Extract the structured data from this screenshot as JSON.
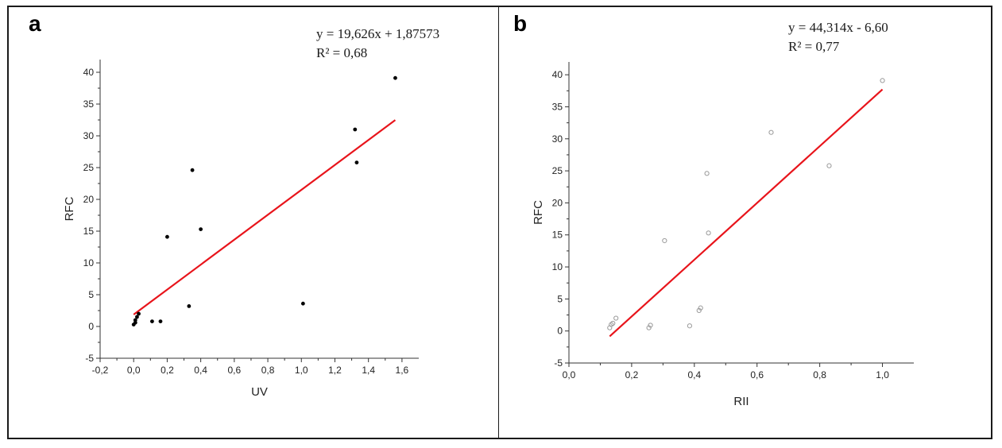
{
  "panels": {
    "a": {
      "letter": "a",
      "equation": "y = 19,626x + 1,87573",
      "r2": "R² = 0,68"
    },
    "b": {
      "letter": "b",
      "equation": "y = 44,314x - 6,60",
      "r2": "R² = 0,77"
    }
  },
  "colors": {
    "fit_line": "#e8141b",
    "points_a": "#000000",
    "points_b": "#9a9a9a"
  },
  "chart_data": [
    {
      "type": "scatter",
      "title": "",
      "xlabel": "UV",
      "ylabel": "RFC",
      "xlim": [
        -0.2,
        1.7
      ],
      "ylim": [
        -5,
        42
      ],
      "xticks": [
        "-0,2",
        "0,0",
        "0,2",
        "0,4",
        "0,6",
        "0,8",
        "1,0",
        "1,2",
        "1,4",
        "1,6"
      ],
      "xtick_values": [
        -0.2,
        0.0,
        0.2,
        0.4,
        0.6,
        0.8,
        1.0,
        1.2,
        1.4,
        1.6
      ],
      "yticks": [
        "-5",
        "0",
        "5",
        "10",
        "15",
        "20",
        "25",
        "30",
        "35",
        "40"
      ],
      "ytick_values": [
        -5,
        0,
        5,
        10,
        15,
        20,
        25,
        30,
        35,
        40
      ],
      "series": [
        {
          "marker": "filled-dot",
          "points": [
            [
              0.0,
              0.3
            ],
            [
              0.01,
              0.6
            ],
            [
              0.01,
              1.0
            ],
            [
              0.02,
              1.5
            ],
            [
              0.03,
              2.0
            ],
            [
              0.11,
              0.8
            ],
            [
              0.16,
              0.8
            ],
            [
              0.2,
              14.1
            ],
            [
              0.33,
              3.2
            ],
            [
              0.35,
              24.6
            ],
            [
              0.4,
              15.3
            ],
            [
              1.01,
              3.6
            ],
            [
              1.32,
              31.0
            ],
            [
              1.33,
              25.8
            ],
            [
              1.56,
              39.1
            ]
          ]
        }
      ],
      "fit_line": {
        "x": [
          0.0,
          1.56
        ],
        "y": [
          1.87573,
          32.49
        ]
      }
    },
    {
      "type": "scatter",
      "title": "",
      "xlabel": "RII",
      "ylabel": "RFC",
      "xlim": [
        0.0,
        1.1
      ],
      "ylim": [
        -5,
        42
      ],
      "xticks": [
        "0,0",
        "0,2",
        "0,4",
        "0,6",
        "0,8",
        "1,0"
      ],
      "xtick_values": [
        0.0,
        0.2,
        0.4,
        0.6,
        0.8,
        1.0
      ],
      "yticks": [
        "-5",
        "0",
        "5",
        "10",
        "15",
        "20",
        "25",
        "30",
        "35",
        "40"
      ],
      "ytick_values": [
        -5,
        0,
        5,
        10,
        15,
        20,
        25,
        30,
        35,
        40
      ],
      "series": [
        {
          "marker": "open-circle",
          "points": [
            [
              0.13,
              0.5
            ],
            [
              0.135,
              1.0
            ],
            [
              0.14,
              1.2
            ],
            [
              0.15,
              2.0
            ],
            [
              0.255,
              0.5
            ],
            [
              0.26,
              0.9
            ],
            [
              0.305,
              14.1
            ],
            [
              0.385,
              0.8
            ],
            [
              0.415,
              3.2
            ],
            [
              0.42,
              3.6
            ],
            [
              0.44,
              24.6
            ],
            [
              0.445,
              15.3
            ],
            [
              0.645,
              31.0
            ],
            [
              0.83,
              25.8
            ],
            [
              1.0,
              39.1
            ]
          ]
        }
      ],
      "fit_line": {
        "x": [
          0.13,
          1.0
        ],
        "y": [
          -0.84,
          37.714
        ]
      }
    }
  ]
}
